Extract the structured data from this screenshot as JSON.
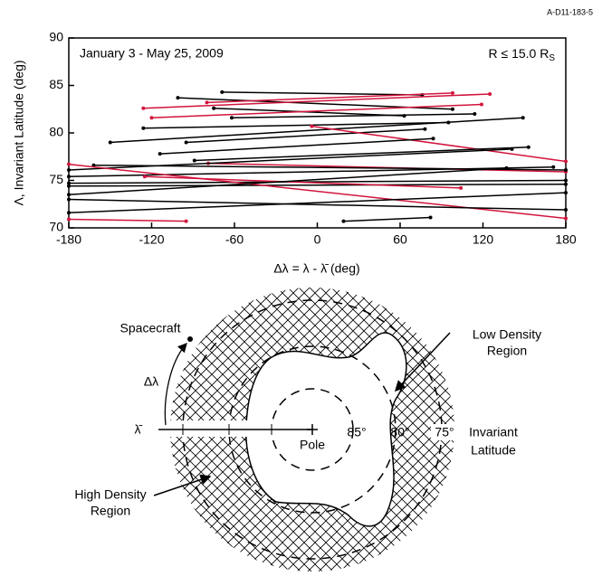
{
  "chart_data": {
    "type": "line",
    "id_label": "A-D11-183-5",
    "annotation_left": "January 3 - May 25, 2009",
    "annotation_right": {
      "main": "R ≤ 15.0 R",
      "sub": "S"
    },
    "x_label": "Δλ = λ - λ̄ (deg)",
    "y_label": "Λ, Invariant Latitude (deg)",
    "xlim": [
      -180,
      180
    ],
    "xticks": [
      -180,
      -120,
      -60,
      0,
      60,
      120,
      180
    ],
    "ylim": [
      70,
      90
    ],
    "yticks": [
      70,
      75,
      80,
      85,
      90
    ],
    "series": [
      {
        "color": "#000000",
        "x": [
          -69,
          76
        ],
        "values": [
          84.3,
          84.0
        ]
      },
      {
        "color": "#000000",
        "x": [
          -101,
          98
        ],
        "values": [
          83.7,
          82.5
        ]
      },
      {
        "color": "#000000",
        "x": [
          -75,
          63
        ],
        "values": [
          82.6,
          81.8
        ]
      },
      {
        "color": "#d2143c",
        "x": [
          -126,
          125
        ],
        "values": [
          82.6,
          84.1
        ]
      },
      {
        "color": "#d2143c",
        "x": [
          -120,
          119
        ],
        "values": [
          81.6,
          83.0
        ]
      },
      {
        "color": "#d2143c",
        "x": [
          -80,
          98
        ],
        "values": [
          83.2,
          84.2
        ]
      },
      {
        "color": "#000000",
        "x": [
          -62,
          114
        ],
        "values": [
          81.6,
          82.0
        ]
      },
      {
        "color": "#000000",
        "x": [
          -126,
          95
        ],
        "values": [
          80.5,
          81.1
        ]
      },
      {
        "color": "#000000",
        "x": [
          -150,
          149
        ],
        "values": [
          79.0,
          81.6
        ]
      },
      {
        "color": "#000000",
        "x": [
          -95,
          78
        ],
        "values": [
          79.0,
          80.4
        ]
      },
      {
        "color": "#d2143c",
        "x": [
          -4,
          180
        ],
        "values": [
          80.7,
          77.0
        ]
      },
      {
        "color": "#000000",
        "x": [
          -114,
          84
        ],
        "values": [
          77.8,
          79.4
        ]
      },
      {
        "color": "#000000",
        "x": [
          -89,
          153
        ],
        "values": [
          77.1,
          78.5
        ]
      },
      {
        "color": "#d2143c",
        "x": [
          -79,
          180
        ],
        "values": [
          76.8,
          75.9
        ]
      },
      {
        "color": "#000000",
        "x": [
          -180,
          141
        ],
        "values": [
          76.1,
          78.3
        ]
      },
      {
        "color": "#000000",
        "x": [
          -162,
          180
        ],
        "values": [
          76.6,
          76.1
        ]
      },
      {
        "color": "#000000",
        "x": [
          -180,
          171
        ],
        "values": [
          75.4,
          76.4
        ]
      },
      {
        "color": "#000000",
        "x": [
          -180,
          180
        ],
        "values": [
          74.7,
          75.0
        ]
      },
      {
        "color": "#000000",
        "x": [
          -180,
          180
        ],
        "values": [
          74.4,
          74.6
        ]
      },
      {
        "color": "#d2143c",
        "x": [
          -180,
          180
        ],
        "values": [
          76.7,
          71.0
        ]
      },
      {
        "color": "#d2143c",
        "x": [
          -125,
          104
        ],
        "values": [
          75.4,
          74.2
        ]
      },
      {
        "color": "#000000",
        "x": [
          -180,
          180
        ],
        "values": [
          71.6,
          73.7
        ]
      },
      {
        "color": "#000000",
        "x": [
          -180,
          137
        ],
        "values": [
          73.5,
          76.3
        ]
      },
      {
        "color": "#d2143c",
        "x": [
          -180,
          -95
        ],
        "values": [
          70.9,
          70.7
        ]
      },
      {
        "color": "#000000",
        "x": [
          19,
          82
        ],
        "values": [
          70.7,
          71.1
        ]
      },
      {
        "color": "#000000",
        "x": [
          -180,
          180
        ],
        "values": [
          73.0,
          71.9
        ]
      }
    ]
  },
  "diagram": {
    "spacecraft": "Spacecraft",
    "delta": "Δλ",
    "lambda_bar": "λ̄",
    "low_density": [
      "Low Density",
      "Region"
    ],
    "high_density": [
      "High Density",
      "Region"
    ],
    "pole": "Pole",
    "lat85": "85°",
    "lat80": "80°",
    "lat75": "75°",
    "invariant": [
      "Invariant",
      "Latitude"
    ]
  }
}
